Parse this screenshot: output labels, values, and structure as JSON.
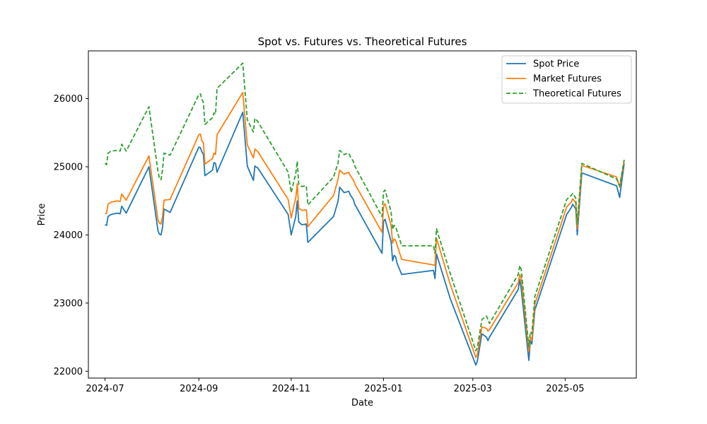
{
  "chart_data": {
    "type": "line",
    "title": "Spot vs. Futures vs. Theoretical Futures",
    "xlabel": "Date",
    "ylabel": "Price",
    "xlim": [
      "2024-06-20",
      "2025-06-17"
    ],
    "ylim": [
      21900,
      26700
    ],
    "x_ticks": [
      "2024-07",
      "2024-09",
      "2024-11",
      "2025-01",
      "2025-03",
      "2025-05"
    ],
    "y_ticks": [
      22000,
      23000,
      24000,
      25000,
      26000
    ],
    "legend_position": "top-right",
    "grid": false,
    "x": [
      "2024-07-01",
      "2024-07-02",
      "2024-07-03",
      "2024-07-05",
      "2024-07-09",
      "2024-07-11",
      "2024-07-12",
      "2024-07-15",
      "2024-07-30",
      "2024-08-05",
      "2024-08-06",
      "2024-08-07",
      "2024-08-08",
      "2024-08-09",
      "2024-08-13",
      "2024-09-01",
      "2024-09-02",
      "2024-09-03",
      "2024-09-04",
      "2024-09-05",
      "2024-09-10",
      "2024-09-11",
      "2024-09-12",
      "2024-09-13",
      "2024-09-30",
      "2024-10-03",
      "2024-10-07",
      "2024-10-08",
      "2024-10-10",
      "2024-10-30",
      "2024-11-01",
      "2024-11-04",
      "2024-11-05",
      "2024-11-06",
      "2024-11-08",
      "2024-11-11",
      "2024-11-12",
      "2024-11-29",
      "2024-12-02",
      "2024-12-03",
      "2024-12-06",
      "2024-12-09",
      "2024-12-10",
      "2024-12-12",
      "2024-12-13",
      "2024-12-31",
      "2025-01-01",
      "2025-01-02",
      "2025-01-06",
      "2025-01-07",
      "2025-01-08",
      "2025-01-09",
      "2025-01-10",
      "2025-01-13",
      "2025-02-03",
      "2025-02-04",
      "2025-02-05",
      "2025-02-14",
      "2025-03-03",
      "2025-03-04",
      "2025-03-07",
      "2025-03-10",
      "2025-03-11",
      "2025-03-12",
      "2025-03-31",
      "2025-04-01",
      "2025-04-02",
      "2025-04-07",
      "2025-04-08",
      "2025-04-09",
      "2025-04-11",
      "2025-05-02",
      "2025-05-05",
      "2025-05-06",
      "2025-05-08",
      "2025-05-09",
      "2025-05-12",
      "2025-06-04",
      "2025-06-06",
      "2025-06-09"
    ],
    "series": [
      {
        "name": "Spot Price",
        "color": "#1f77b4",
        "dash": "solid",
        "values": [
          24150,
          24140,
          24270,
          24300,
          24320,
          24310,
          24420,
          24320,
          25000,
          24060,
          24010,
          24000,
          24110,
          24380,
          24330,
          25290,
          25280,
          25220,
          25180,
          24870,
          24950,
          25060,
          25050,
          24920,
          25800,
          25010,
          24800,
          25010,
          24980,
          24300,
          24000,
          24270,
          24500,
          24190,
          24150,
          24160,
          23890,
          24270,
          24500,
          24700,
          24620,
          24640,
          24590,
          24520,
          24450,
          23730,
          24200,
          24230,
          23900,
          23620,
          23700,
          23680,
          23580,
          23420,
          23480,
          23360,
          23720,
          23070,
          22090,
          22150,
          22550,
          22500,
          22450,
          22500,
          23200,
          23350,
          23200,
          22160,
          22450,
          22400,
          22900,
          24300,
          24400,
          24450,
          24380,
          24000,
          24910,
          24720,
          24550,
          25050
        ]
      },
      {
        "name": "Market Futures",
        "color": "#ff7f0e",
        "dash": "solid",
        "values": [
          24310,
          24320,
          24450,
          24480,
          24500,
          24490,
          24600,
          24510,
          25160,
          24220,
          24170,
          24160,
          24270,
          24510,
          24520,
          25470,
          25480,
          25380,
          25350,
          25040,
          25120,
          25200,
          25180,
          25470,
          26090,
          25320,
          25130,
          25260,
          25220,
          24520,
          24250,
          24540,
          24750,
          24390,
          24360,
          24370,
          24120,
          24580,
          24820,
          24950,
          24890,
          24920,
          24870,
          24810,
          24750,
          24040,
          24420,
          24460,
          24140,
          23880,
          23940,
          23920,
          23850,
          23640,
          23560,
          23550,
          23950,
          23280,
          22200,
          22250,
          22650,
          22630,
          22590,
          22610,
          23300,
          23420,
          23360,
          22290,
          22500,
          22460,
          22990,
          24410,
          24480,
          24530,
          24470,
          24090,
          25020,
          24850,
          24700,
          25100
        ]
      },
      {
        "name": "Theoretical Futures",
        "color": "#2ca02c",
        "dash": "dashed",
        "values": [
          25050,
          25030,
          25200,
          25230,
          25240,
          25230,
          25330,
          25230,
          25880,
          24930,
          24830,
          24810,
          24960,
          25200,
          25170,
          26060,
          26070,
          25990,
          25940,
          25620,
          25720,
          25790,
          25770,
          26150,
          26520,
          25690,
          25510,
          25710,
          25660,
          24920,
          24620,
          24900,
          25080,
          24740,
          24710,
          24720,
          24440,
          24850,
          25060,
          25240,
          25180,
          25200,
          25150,
          25080,
          25010,
          24270,
          24630,
          24660,
          24340,
          24080,
          24140,
          24120,
          24050,
          23840,
          23840,
          23730,
          24090,
          23440,
          22300,
          22350,
          22760,
          22810,
          22760,
          22700,
          23420,
          23550,
          23490,
          22360,
          22580,
          22550,
          23100,
          24520,
          24580,
          24610,
          24540,
          24160,
          25050,
          24820,
          24720,
          25100
        ]
      }
    ]
  }
}
